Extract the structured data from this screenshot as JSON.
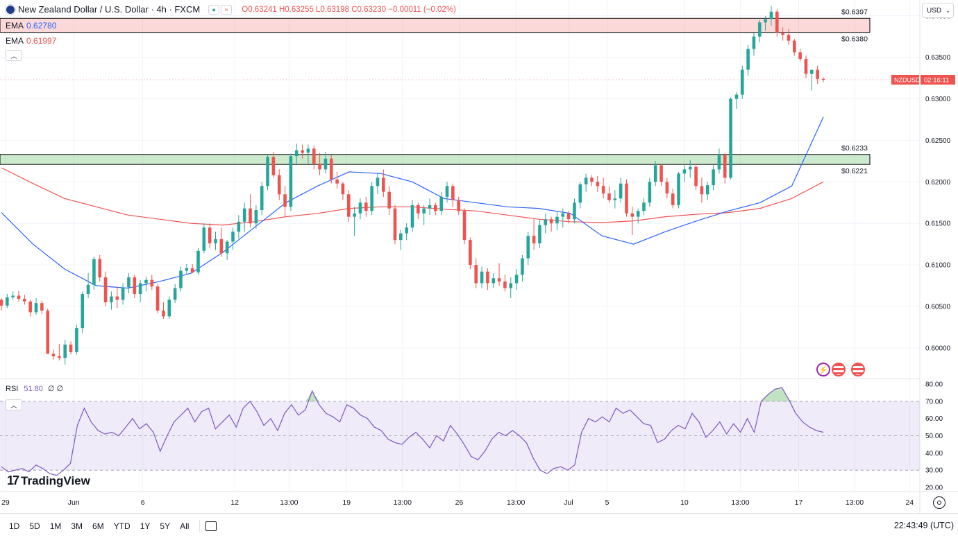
{
  "header": {
    "title": "New Zealand Dollar / U.S. Dollar · 4h · FXCM",
    "ohlc": "O0.63241 H0.63255 L0.63198 C0.63230 −0.00011 (−0.02%)",
    "ema1_label": "EMA",
    "ema1_value": "0.62780",
    "ema2_label": "EMA",
    "ema2_value": "0.61997",
    "currency": "USD"
  },
  "rsi": {
    "label": "RSI",
    "value": "51.80",
    "extra": "∅ ∅"
  },
  "logo": "TradingView",
  "symbol_tag": {
    "name": "NZDUSD",
    "countdown": "02:16:11"
  },
  "ranges": [
    "1D",
    "5D",
    "1M",
    "3M",
    "6M",
    "YTD",
    "1Y",
    "5Y",
    "All"
  ],
  "clock": "22:43:49 (UTC)",
  "colors": {
    "up": "#26a69a",
    "down": "#ef5350",
    "ema_fast": "#2962ff",
    "ema_slow": "#ef5350",
    "rsi": "#7e57c2"
  },
  "chart_data": {
    "type": "candlestick",
    "title": "New Zealand Dollar / U.S. Dollar · 4h · FXCM",
    "y_ticks": [
      "0.64000",
      "0.63500",
      "0.63000",
      "0.62500",
      "0.62000",
      "0.61500",
      "0.61000",
      "0.60500",
      "0.60000"
    ],
    "x_ticks": [
      "29",
      "Jun",
      "6",
      "12",
      "13:00",
      "19",
      "13:00",
      "26",
      "13:00",
      "Jul",
      "5",
      "10",
      "13:00",
      "17",
      "13:00",
      "24"
    ],
    "ylim": [
      0.5964,
      0.6419
    ],
    "zones": [
      {
        "name": "resistance",
        "top": 0.6397,
        "bottom": 0.638,
        "top_label": "$0.6397",
        "bottom_label": "$0.6380",
        "color": "#ef5350"
      },
      {
        "name": "support",
        "top": 0.6233,
        "bottom": 0.6221,
        "top_label": "$0.6233",
        "bottom_label": "$0.6221",
        "color": "#26a69a"
      }
    ],
    "candles": [
      [
        0.6058,
        0.606,
        0.6045,
        0.6051
      ],
      [
        0.6051,
        0.6065,
        0.6048,
        0.6061
      ],
      [
        0.6061,
        0.6068,
        0.6058,
        0.6063
      ],
      [
        0.6063,
        0.6069,
        0.6056,
        0.6059
      ],
      [
        0.6059,
        0.6064,
        0.6052,
        0.6056
      ],
      [
        0.6056,
        0.6058,
        0.6038,
        0.6043
      ],
      [
        0.6043,
        0.606,
        0.604,
        0.6054
      ],
      [
        0.6054,
        0.6057,
        0.6041,
        0.6045
      ],
      [
        0.6045,
        0.6047,
        0.5993,
        0.5993
      ],
      [
        0.5993,
        0.5998,
        0.5986,
        0.599
      ],
      [
        0.599,
        0.6005,
        0.5985,
        0.5988
      ],
      [
        0.5988,
        0.601,
        0.598,
        0.6004
      ],
      [
        0.6004,
        0.6008,
        0.5992,
        0.5995
      ],
      [
        0.5995,
        0.6028,
        0.5992,
        0.6024
      ],
      [
        0.6024,
        0.6068,
        0.6018,
        0.6065
      ],
      [
        0.6065,
        0.609,
        0.606,
        0.6076
      ],
      [
        0.6076,
        0.611,
        0.607,
        0.6107
      ],
      [
        0.6107,
        0.6112,
        0.608,
        0.6085
      ],
      [
        0.6085,
        0.6092,
        0.605,
        0.6055
      ],
      [
        0.6055,
        0.6068,
        0.6046,
        0.6062
      ],
      [
        0.6062,
        0.6074,
        0.6048,
        0.6058
      ],
      [
        0.6058,
        0.6078,
        0.6052,
        0.6073
      ],
      [
        0.6073,
        0.609,
        0.6066,
        0.6085
      ],
      [
        0.6085,
        0.6088,
        0.606,
        0.6065
      ],
      [
        0.6065,
        0.6082,
        0.6055,
        0.6078
      ],
      [
        0.6078,
        0.6086,
        0.6068,
        0.6082
      ],
      [
        0.6082,
        0.6088,
        0.607,
        0.6074
      ],
      [
        0.6074,
        0.6077,
        0.6042,
        0.6045
      ],
      [
        0.6045,
        0.6055,
        0.6035,
        0.6038
      ],
      [
        0.6038,
        0.6062,
        0.6035,
        0.6058
      ],
      [
        0.6058,
        0.6077,
        0.6054,
        0.6072
      ],
      [
        0.6072,
        0.6098,
        0.6068,
        0.6093
      ],
      [
        0.6093,
        0.6101,
        0.6088,
        0.6096
      ],
      [
        0.6096,
        0.6101,
        0.609,
        0.6091
      ],
      [
        0.6091,
        0.612,
        0.6088,
        0.6117
      ],
      [
        0.6117,
        0.615,
        0.6114,
        0.6145
      ],
      [
        0.6145,
        0.615,
        0.612,
        0.6126
      ],
      [
        0.6126,
        0.614,
        0.6118,
        0.6131
      ],
      [
        0.6131,
        0.6145,
        0.611,
        0.6114
      ],
      [
        0.6114,
        0.613,
        0.6106,
        0.6128
      ],
      [
        0.6128,
        0.6145,
        0.6118,
        0.614
      ],
      [
        0.614,
        0.616,
        0.6132,
        0.6152
      ],
      [
        0.6152,
        0.6175,
        0.614,
        0.6168
      ],
      [
        0.6168,
        0.6185,
        0.6145,
        0.615
      ],
      [
        0.615,
        0.6172,
        0.6144,
        0.6166
      ],
      [
        0.6166,
        0.62,
        0.616,
        0.6195
      ],
      [
        0.6195,
        0.6232,
        0.619,
        0.623
      ],
      [
        0.623,
        0.6236,
        0.6205,
        0.6208
      ],
      [
        0.6208,
        0.6215,
        0.6178,
        0.6185
      ],
      [
        0.6185,
        0.6195,
        0.6158,
        0.617
      ],
      [
        0.617,
        0.6234,
        0.6165,
        0.6231
      ],
      [
        0.6231,
        0.6246,
        0.622,
        0.6238
      ],
      [
        0.6238,
        0.6245,
        0.6228,
        0.6235
      ],
      [
        0.6235,
        0.6245,
        0.6222,
        0.624
      ],
      [
        0.624,
        0.6244,
        0.6215,
        0.6222
      ],
      [
        0.6222,
        0.6235,
        0.6208,
        0.6215
      ],
      [
        0.6215,
        0.6236,
        0.621,
        0.6228
      ],
      [
        0.6228,
        0.6232,
        0.6198,
        0.6203
      ],
      [
        0.6203,
        0.6212,
        0.6192,
        0.6198
      ],
      [
        0.6198,
        0.62,
        0.6178,
        0.6185
      ],
      [
        0.6185,
        0.619,
        0.6152,
        0.6158
      ],
      [
        0.6158,
        0.617,
        0.6135,
        0.6162
      ],
      [
        0.6162,
        0.618,
        0.6155,
        0.6175
      ],
      [
        0.6175,
        0.6182,
        0.6158,
        0.6165
      ],
      [
        0.6165,
        0.62,
        0.616,
        0.6195
      ],
      [
        0.6195,
        0.621,
        0.6185,
        0.6205
      ],
      [
        0.6205,
        0.6215,
        0.6182,
        0.6188
      ],
      [
        0.6188,
        0.6195,
        0.616,
        0.6168
      ],
      [
        0.6168,
        0.6172,
        0.6125,
        0.613
      ],
      [
        0.613,
        0.6142,
        0.6118,
        0.6138
      ],
      [
        0.6138,
        0.615,
        0.613,
        0.6145
      ],
      [
        0.6145,
        0.6178,
        0.614,
        0.6172
      ],
      [
        0.6172,
        0.6175,
        0.6155,
        0.6162
      ],
      [
        0.6162,
        0.6172,
        0.6148,
        0.6168
      ],
      [
        0.6168,
        0.618,
        0.616,
        0.6172
      ],
      [
        0.6172,
        0.6175,
        0.616,
        0.6165
      ],
      [
        0.6165,
        0.6188,
        0.616,
        0.6182
      ],
      [
        0.6182,
        0.62,
        0.6175,
        0.6195
      ],
      [
        0.6195,
        0.6198,
        0.617,
        0.6178
      ],
      [
        0.6178,
        0.6182,
        0.616,
        0.6165
      ],
      [
        0.6165,
        0.6168,
        0.6125,
        0.613
      ],
      [
        0.613,
        0.6133,
        0.6095,
        0.61
      ],
      [
        0.61,
        0.6108,
        0.6072,
        0.6078
      ],
      [
        0.6078,
        0.6098,
        0.6072,
        0.6092
      ],
      [
        0.6092,
        0.6096,
        0.607,
        0.6078
      ],
      [
        0.6078,
        0.609,
        0.6072,
        0.6084
      ],
      [
        0.6084,
        0.6102,
        0.6075,
        0.608
      ],
      [
        0.608,
        0.6088,
        0.6068,
        0.6072
      ],
      [
        0.6072,
        0.6085,
        0.606,
        0.6078
      ],
      [
        0.6078,
        0.6095,
        0.607,
        0.6088
      ],
      [
        0.6088,
        0.6112,
        0.608,
        0.6108
      ],
      [
        0.6108,
        0.614,
        0.61,
        0.6135
      ],
      [
        0.6135,
        0.6155,
        0.6118,
        0.6126
      ],
      [
        0.6126,
        0.6155,
        0.612,
        0.6148
      ],
      [
        0.6148,
        0.6162,
        0.6138,
        0.6155
      ],
      [
        0.6155,
        0.6158,
        0.614,
        0.615
      ],
      [
        0.615,
        0.6165,
        0.6142,
        0.6158
      ],
      [
        0.6158,
        0.6168,
        0.6145,
        0.6162
      ],
      [
        0.6162,
        0.6165,
        0.615,
        0.6155
      ],
      [
        0.6155,
        0.618,
        0.615,
        0.6175
      ],
      [
        0.6175,
        0.62,
        0.6168,
        0.6197
      ],
      [
        0.6197,
        0.621,
        0.6188,
        0.6205
      ],
      [
        0.6205,
        0.6208,
        0.6195,
        0.62
      ],
      [
        0.62,
        0.6207,
        0.6188,
        0.6195
      ],
      [
        0.6195,
        0.6205,
        0.618,
        0.6186
      ],
      [
        0.6186,
        0.6195,
        0.6175,
        0.6178
      ],
      [
        0.6178,
        0.619,
        0.6168,
        0.618
      ],
      [
        0.618,
        0.6205,
        0.6175,
        0.6198
      ],
      [
        0.6198,
        0.6203,
        0.6158,
        0.6162
      ],
      [
        0.6162,
        0.617,
        0.6136,
        0.6158
      ],
      [
        0.6158,
        0.6168,
        0.615,
        0.6165
      ],
      [
        0.6165,
        0.618,
        0.616,
        0.6175
      ],
      [
        0.6175,
        0.6205,
        0.617,
        0.62
      ],
      [
        0.62,
        0.6225,
        0.6195,
        0.622
      ],
      [
        0.622,
        0.6222,
        0.6195,
        0.62
      ],
      [
        0.62,
        0.6205,
        0.618,
        0.6186
      ],
      [
        0.6186,
        0.6192,
        0.6168,
        0.6172
      ],
      [
        0.6172,
        0.6212,
        0.6168,
        0.621
      ],
      [
        0.621,
        0.6222,
        0.62,
        0.6215
      ],
      [
        0.6215,
        0.6226,
        0.6205,
        0.6218
      ],
      [
        0.6218,
        0.6222,
        0.619,
        0.6195
      ],
      [
        0.6195,
        0.6205,
        0.6175,
        0.6185
      ],
      [
        0.6185,
        0.62,
        0.6178,
        0.6196
      ],
      [
        0.6196,
        0.622,
        0.619,
        0.6215
      ],
      [
        0.6215,
        0.624,
        0.621,
        0.6232
      ],
      [
        0.6232,
        0.6235,
        0.6198,
        0.6205
      ],
      [
        0.6205,
        0.6302,
        0.6203,
        0.63
      ],
      [
        0.63,
        0.6308,
        0.6288,
        0.6305
      ],
      [
        0.6305,
        0.634,
        0.63,
        0.6335
      ],
      [
        0.6335,
        0.6365,
        0.6328,
        0.636
      ],
      [
        0.636,
        0.638,
        0.6352,
        0.6375
      ],
      [
        0.6375,
        0.6395,
        0.6368,
        0.6392
      ],
      [
        0.6392,
        0.64,
        0.6382,
        0.6396
      ],
      [
        0.6396,
        0.6412,
        0.6388,
        0.6405
      ],
      [
        0.6405,
        0.6408,
        0.6375,
        0.638
      ],
      [
        0.638,
        0.6386,
        0.637,
        0.6377
      ],
      [
        0.6377,
        0.6384,
        0.6365,
        0.637
      ],
      [
        0.637,
        0.6372,
        0.6352,
        0.6356
      ],
      [
        0.6356,
        0.636,
        0.6345,
        0.6348
      ],
      [
        0.6348,
        0.6352,
        0.6325,
        0.633
      ],
      [
        0.633,
        0.6332,
        0.631,
        0.6335
      ],
      [
        0.6335,
        0.634,
        0.6318,
        0.6324
      ],
      [
        0.6324,
        0.6326,
        0.632,
        0.6323
      ]
    ],
    "ema_fast": {
      "name": "EMA",
      "start": 0.6163,
      "end": 0.6278,
      "values": [
        0.6163,
        0.6125,
        0.6095,
        0.6075,
        0.6072,
        0.608,
        0.609,
        0.6115,
        0.6145,
        0.6175,
        0.6195,
        0.6212,
        0.621,
        0.62,
        0.618,
        0.6175,
        0.617,
        0.6168,
        0.6162,
        0.6135,
        0.6125,
        0.614,
        0.6153,
        0.6165,
        0.6175,
        0.6195,
        0.6278
      ]
    },
    "ema_slow": {
      "name": "EMA",
      "values": [
        0.6217,
        0.6198,
        0.618,
        0.617,
        0.616,
        0.6155,
        0.615,
        0.6148,
        0.6152,
        0.6158,
        0.6162,
        0.6168,
        0.617,
        0.617,
        0.6167,
        0.6165,
        0.616,
        0.6155,
        0.6152,
        0.6151,
        0.6153,
        0.6158,
        0.6161,
        0.6163,
        0.6168,
        0.618,
        0.62
      ]
    },
    "rsi": {
      "name": "RSI",
      "levels": [
        70,
        50,
        30
      ],
      "ylim": [
        18,
        82
      ],
      "y_ticks": [
        "80.00",
        "70.00",
        "60.00",
        "50.00",
        "40.00",
        "30.00",
        "20.00"
      ],
      "values": [
        32,
        29,
        30,
        31,
        29,
        33,
        31,
        28,
        27,
        30,
        34,
        56,
        66,
        58,
        53,
        51,
        52,
        50,
        55,
        60,
        54,
        57,
        52,
        41,
        50,
        58,
        62,
        66,
        58,
        64,
        66,
        54,
        58,
        62,
        55,
        66,
        70,
        64,
        56,
        60,
        53,
        63,
        68,
        62,
        65,
        76,
        68,
        63,
        61,
        58,
        68,
        66,
        62,
        60,
        55,
        53,
        48,
        46,
        45,
        49,
        52,
        48,
        43,
        50,
        47,
        56,
        51,
        45,
        38,
        36,
        41,
        48,
        52,
        50,
        53,
        50,
        46,
        37,
        30,
        28,
        31,
        32,
        30,
        33,
        52,
        60,
        58,
        61,
        58,
        66,
        63,
        65,
        61,
        57,
        56,
        46,
        48,
        53,
        56,
        54,
        63,
        58,
        49,
        53,
        58,
        51,
        57,
        52,
        60,
        52,
        70,
        74,
        77,
        78,
        71,
        63,
        58,
        55,
        53,
        52
      ]
    }
  }
}
